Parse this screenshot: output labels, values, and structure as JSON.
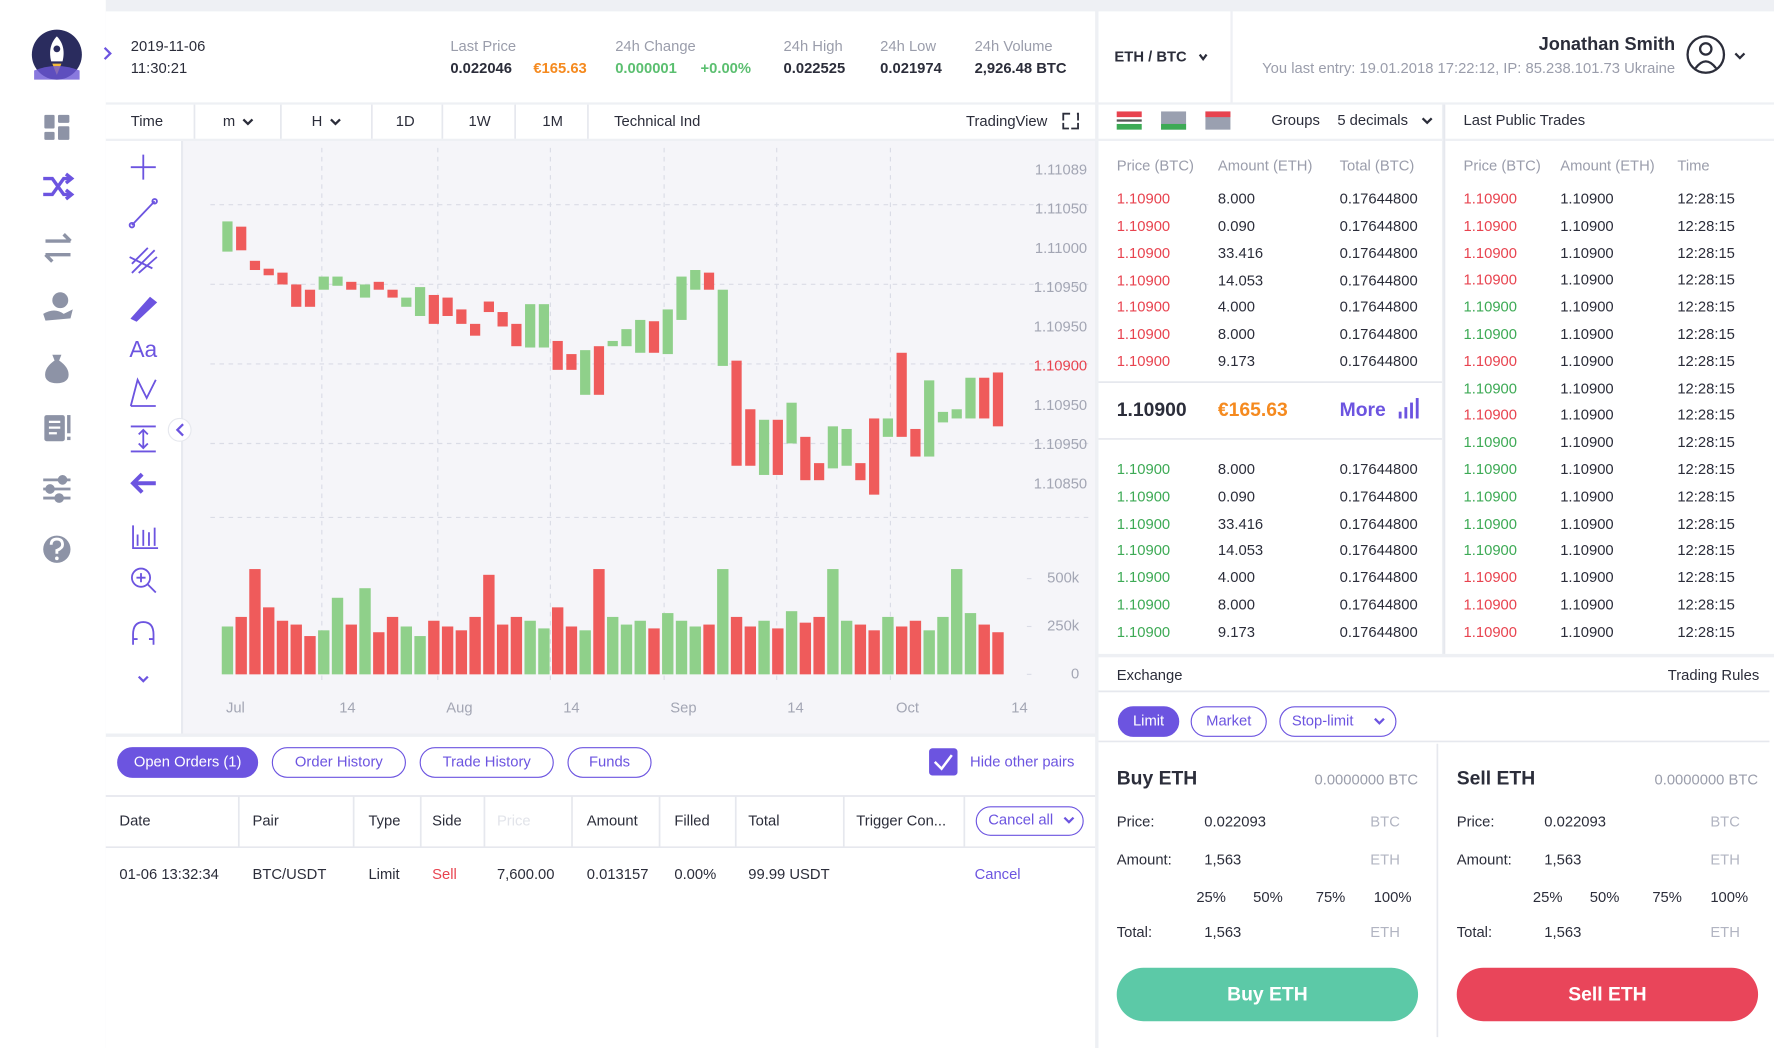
{
  "header": {
    "date": "2019-11-06",
    "time": "11:30:21",
    "stats": [
      {
        "label": "Last Price",
        "value": "0.022046",
        "extra": "€165.63"
      },
      {
        "label": "24h Change",
        "value": "0.000001",
        "extra": "+0.00%"
      },
      {
        "label": "24h High",
        "value": "0.022525"
      },
      {
        "label": "24h Low",
        "value": "0.021974"
      },
      {
        "label": "24h Volume",
        "value": "2,926.48 BTC"
      }
    ],
    "pair": "ETH / BTC",
    "user": {
      "name": "Jonathan Smith",
      "last_entry": "You last entry: 19.01.2018 17:22:12, IP: 85.238.101.73 Ukraine"
    }
  },
  "toolbar": {
    "items": [
      "Time",
      "m",
      "H",
      "1D",
      "1W",
      "1M",
      "Technical Ind"
    ],
    "brand": "TradingView",
    "text_tool": "Aa"
  },
  "chart_data": {
    "type": "candlestick",
    "open": [
      1.11027,
      1.11046,
      1.1102,
      1.11014,
      1.11011,
      1.11002,
      1.10998,
      1.10998,
      1.11001,
      1.11004,
      1.10992,
      1.11004,
      1.10998,
      1.10985,
      1.10978,
      1.10994,
      1.10992,
      1.10983,
      1.10972,
      1.10989,
      1.10981,
      1.10972,
      1.10954,
      1.10954,
      1.10959,
      1.10949,
      1.10918,
      1.10955,
      1.10955,
      1.10955,
      1.1095,
      1.10974,
      1.10949,
      1.10975,
      1.10998,
      1.11011,
      1.1094,
      1.10944,
      1.10907,
      1.10857,
      1.10899,
      1.10881,
      1.10886,
      1.10866,
      1.10862,
      1.10864,
      1.10866,
      1.109,
      1.10886,
      1.1095,
      1.10892,
      1.10871,
      1.10897,
      1.109,
      1.109,
      1.10931,
      1.10935
    ],
    "close": [
      1.1105,
      1.11028,
      1.11013,
      1.11009,
      1.11002,
      1.10985,
      1.10985,
      1.11008,
      1.11008,
      1.10998,
      1.11002,
      1.10998,
      1.10992,
      1.10992,
      1.11,
      1.10972,
      1.10978,
      1.10972,
      1.10963,
      1.10981,
      1.1097,
      1.10955,
      1.10987,
      1.10987,
      1.10937,
      1.10937,
      1.10952,
      1.10918,
      1.10959,
      1.10968,
      1.10975,
      1.1095,
      1.10983,
      1.11008,
      1.11013,
      1.10998,
      1.10998,
      1.10864,
      1.10864,
      1.10899,
      1.10857,
      1.10912,
      1.10853,
      1.10853,
      1.10894,
      1.10892,
      1.10853,
      1.10842,
      1.109,
      1.10886,
      1.10871,
      1.10929,
      1.10905,
      1.10907,
      1.10931,
      1.109,
      1.10894
    ],
    "volume": [
      250000,
      300000,
      550000,
      350000,
      280000,
      260000,
      200000,
      230000,
      400000,
      260000,
      450000,
      220000,
      300000,
      250000,
      200000,
      280000,
      250000,
      230000,
      300000,
      520000,
      260000,
      300000,
      280000,
      240000,
      350000,
      250000,
      230000,
      550000,
      300000,
      260000,
      280000,
      240000,
      320000,
      280000,
      250000,
      260000,
      550000,
      300000,
      250000,
      280000,
      240000,
      330000,
      270000,
      300000,
      550000,
      280000,
      260000,
      230000,
      300000,
      250000,
      280000,
      230000,
      300000,
      550000,
      320000,
      260000,
      220000
    ],
    "up_color": "#8fd08a",
    "down_color": "#ef5b5b",
    "ylim": [
      1.10829,
      1.11106
    ],
    "price_labels": [
      "1.11089",
      "1.11050",
      "1.11000",
      "1.10950",
      "1.10950",
      "1.10900",
      "1.10950",
      "1.10950",
      "1.10850"
    ],
    "price_label_colors": [
      "#a3a6b4",
      "#a3a6b4",
      "#a3a6b4",
      "#a3a6b4",
      "#a3a6b4",
      "#e8434f",
      "#a3a6b4",
      "#a3a6b4",
      "#a3a6b4"
    ],
    "volume_ylim": [
      0,
      600000
    ],
    "volume_ticks": [
      0,
      {
        "value": 250000,
        "label": "250k"
      },
      {
        "value": 500000,
        "label": "500k"
      }
    ],
    "x_labels": [
      "Jul",
      "14",
      "Aug",
      "14",
      "Sep",
      "14",
      "Oct",
      "14"
    ]
  },
  "orderbook": {
    "groups_label": "Groups",
    "decimals": "5 decimals",
    "columns": [
      "Price (BTC)",
      "Amount (ETH)",
      "Total (BTC)"
    ],
    "asks": [
      [
        "1.10900",
        "8.000",
        "0.17644800"
      ],
      [
        "1.10900",
        "0.090",
        "0.17644800"
      ],
      [
        "1.10900",
        "33.416",
        "0.17644800"
      ],
      [
        "1.10900",
        "14.053",
        "0.17644800"
      ],
      [
        "1.10900",
        "4.000",
        "0.17644800"
      ],
      [
        "1.10900",
        "8.000",
        "0.17644800"
      ],
      [
        "1.10900",
        "9.173",
        "0.17644800"
      ]
    ],
    "mid": {
      "price": "1.10900",
      "fiat": "€165.63",
      "more": "More"
    },
    "bids": [
      [
        "1.10900",
        "8.000",
        "0.17644800"
      ],
      [
        "1.10900",
        "0.090",
        "0.17644800"
      ],
      [
        "1.10900",
        "33.416",
        "0.17644800"
      ],
      [
        "1.10900",
        "14.053",
        "0.17644800"
      ],
      [
        "1.10900",
        "4.000",
        "0.17644800"
      ],
      [
        "1.10900",
        "8.000",
        "0.17644800"
      ],
      [
        "1.10900",
        "9.173",
        "0.17644800"
      ]
    ]
  },
  "trades": {
    "title": "Last Public Trades",
    "columns": [
      "Price (BTC)",
      "Amount (ETH)",
      "Time"
    ],
    "rows": [
      {
        "price": "1.10900",
        "amount": "1.10900",
        "time": "12:28:15",
        "color": "#e8434f"
      },
      {
        "price": "1.10900",
        "amount": "1.10900",
        "time": "12:28:15",
        "color": "#e8434f"
      },
      {
        "price": "1.10900",
        "amount": "1.10900",
        "time": "12:28:15",
        "color": "#e8434f"
      },
      {
        "price": "1.10900",
        "amount": "1.10900",
        "time": "12:28:15",
        "color": "#e8434f"
      },
      {
        "price": "1.10900",
        "amount": "1.10900",
        "time": "12:28:15",
        "color": "#3daa55"
      },
      {
        "price": "1.10900",
        "amount": "1.10900",
        "time": "12:28:15",
        "color": "#3daa55"
      },
      {
        "price": "1.10900",
        "amount": "1.10900",
        "time": "12:28:15",
        "color": "#e8434f"
      },
      {
        "price": "1.10900",
        "amount": "1.10900",
        "time": "12:28:15",
        "color": "#3daa55"
      },
      {
        "price": "1.10900",
        "amount": "1.10900",
        "time": "12:28:15",
        "color": "#e8434f"
      },
      {
        "price": "1.10900",
        "amount": "1.10900",
        "time": "12:28:15",
        "color": "#3daa55"
      },
      {
        "price": "1.10900",
        "amount": "1.10900",
        "time": "12:28:15",
        "color": "#3daa55"
      },
      {
        "price": "1.10900",
        "amount": "1.10900",
        "time": "12:28:15",
        "color": "#3daa55"
      },
      {
        "price": "1.10900",
        "amount": "1.10900",
        "time": "12:28:15",
        "color": "#3daa55"
      },
      {
        "price": "1.10900",
        "amount": "1.10900",
        "time": "12:28:15",
        "color": "#3daa55"
      },
      {
        "price": "1.10900",
        "amount": "1.10900",
        "time": "12:28:15",
        "color": "#e8434f"
      },
      {
        "price": "1.10900",
        "amount": "1.10900",
        "time": "12:28:15",
        "color": "#e8434f"
      },
      {
        "price": "1.10900",
        "amount": "1.10900",
        "time": "12:28:15",
        "color": "#e8434f"
      }
    ]
  },
  "orders": {
    "tabs": [
      "Open Orders (1)",
      "Order History",
      "Trade History",
      "Funds"
    ],
    "hide_label": "Hide other pairs",
    "columns": [
      "Date",
      "Pair",
      "Type",
      "Side",
      "Price",
      "Amount",
      "Filled",
      "Total",
      "Trigger Con..."
    ],
    "cancel_all": "Cancel all",
    "rows": [
      [
        "01-06 13:32:34",
        "BTC/USDT",
        "Limit",
        "Sell",
        "7,600.00",
        "0.013157",
        "0.00%",
        "99.99 USDT",
        "Cancel"
      ]
    ]
  },
  "exchange": {
    "title": "Exchange",
    "rules": "Trading Rules",
    "types": [
      "Limit",
      "Market",
      "Stop-limit"
    ],
    "forms": [
      {
        "title": "Buy ETH",
        "balance": "0.0000000 BTC",
        "price_label": "Price:",
        "price": "0.022093",
        "price_unit": "BTC",
        "amount_label": "Amount:",
        "amount": "1,563",
        "amount_unit": "ETH",
        "percents": [
          "25%",
          "50%",
          "75%",
          "100%"
        ],
        "total_label": "Total:",
        "total": "1,563",
        "total_unit": "ETH",
        "button": "Buy ETH",
        "button_color": "#5cc9a7"
      },
      {
        "title": "Sell ETH",
        "balance": "0.0000000 BTC",
        "price_label": "Price:",
        "price": "0.022093",
        "price_unit": "BTC",
        "amount_label": "Amount:",
        "amount": "1,563",
        "amount_unit": "ETH",
        "percents": [
          "25%",
          "50%",
          "75%",
          "100%"
        ],
        "total_label": "Total:",
        "total": "1,563",
        "total_unit": "ETH",
        "button": "Sell ETH",
        "button_color": "#e9455a"
      }
    ]
  }
}
